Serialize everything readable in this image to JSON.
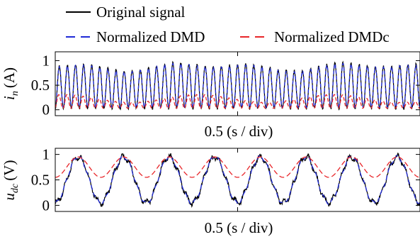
{
  "legend": {
    "items": [
      {
        "label": "Original signal",
        "color": "#000000",
        "dash": "solid"
      },
      {
        "label": "Normalized DMD",
        "color": "#1f2ad6",
        "dash": "dashed"
      },
      {
        "label": "Normalized DMDc",
        "color": "#e8262a",
        "dash": "dashed"
      }
    ]
  },
  "chart_data": [
    {
      "type": "line",
      "ylabel_main": "i",
      "ylabel_sub": "n",
      "ylabel_unit": "(A)",
      "xlabel": "0.5 (s / div)",
      "ylim": [
        -0.12,
        1.18
      ],
      "yticks": [
        0,
        0.5,
        1
      ],
      "ytick_labels": [
        "0",
        "0.5",
        "1"
      ],
      "x_divisions": 2,
      "series": [
        {
          "name": "Original signal",
          "color": "#000000",
          "dash": "solid",
          "description_values": {
            "oscillation_cycles": 45,
            "min": 0.0,
            "max": 0.98
          }
        },
        {
          "name": "Normalized DMD",
          "color": "#1f2ad6",
          "dash": "dashed",
          "description_values": {
            "oscillation_cycles": 45,
            "min": 0.02,
            "max": 0.97
          }
        },
        {
          "name": "Normalized DMDc",
          "color": "#e8262a",
          "dash": "dashed",
          "description_values": {
            "oscillation_cycles": 45,
            "min": 0.02,
            "max": 0.3
          }
        }
      ]
    },
    {
      "type": "line",
      "ylabel_main": "u",
      "ylabel_sub": "dc",
      "ylabel_unit": "(V)",
      "xlabel": "0.5 (s / div)",
      "ylim": [
        -0.12,
        1.12
      ],
      "yticks": [
        0,
        0.5,
        1
      ],
      "ytick_labels": [
        "0",
        "0.5",
        "1"
      ],
      "x_divisions": 2,
      "series": [
        {
          "name": "Original signal",
          "color": "#000000",
          "dash": "solid",
          "description_values": {
            "oscillation_cycles": 8,
            "min": 0.03,
            "max": 0.98
          }
        },
        {
          "name": "Normalized DMD",
          "color": "#1f2ad6",
          "dash": "dashed",
          "description_values": {
            "oscillation_cycles": 8,
            "min": 0.05,
            "max": 0.97
          }
        },
        {
          "name": "Normalized DMDc",
          "color": "#e8262a",
          "dash": "dashed",
          "description_values": {
            "oscillation_cycles": 8,
            "min": 0.55,
            "max": 0.95
          }
        }
      ]
    }
  ]
}
